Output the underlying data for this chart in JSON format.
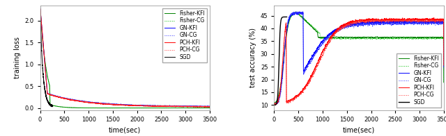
{
  "left": {
    "xlabel": "time(sec)",
    "ylabel": "training loss",
    "xlim": [
      0,
      3500
    ],
    "ylim": [
      -0.05,
      2.35
    ],
    "yticks": [
      0.0,
      0.5,
      1.0,
      1.5,
      2.0
    ],
    "xticks": [
      0,
      500,
      1000,
      1500,
      2000,
      2500,
      3000,
      3500
    ]
  },
  "right": {
    "xlabel": "time(sec)",
    "ylabel": "test accuracy (%)",
    "xlim": [
      0,
      3500
    ],
    "ylim": [
      8,
      49
    ],
    "yticks": [
      10,
      15,
      20,
      25,
      30,
      35,
      40,
      45
    ],
    "xticks": [
      0,
      500,
      1000,
      1500,
      2000,
      2500,
      3000,
      3500
    ]
  },
  "legend_labels": [
    "Fisher-KFI",
    "Fisher-CG",
    "GN-KFI",
    "GN-CG",
    "PCH-KFI",
    "PCH-CG",
    "SGD"
  ],
  "colors": {
    "Fisher-KFI": "#008000",
    "Fisher-CG": "#00bb00",
    "GN-KFI": "#0000ff",
    "GN-CG": "#3333ff",
    "PCH-KFI": "#ff0000",
    "PCH-CG": "#ff3333",
    "SGD": "#000000"
  },
  "bg_color": "#ffffff",
  "figsize": [
    6.4,
    1.96
  ],
  "dpi": 100
}
